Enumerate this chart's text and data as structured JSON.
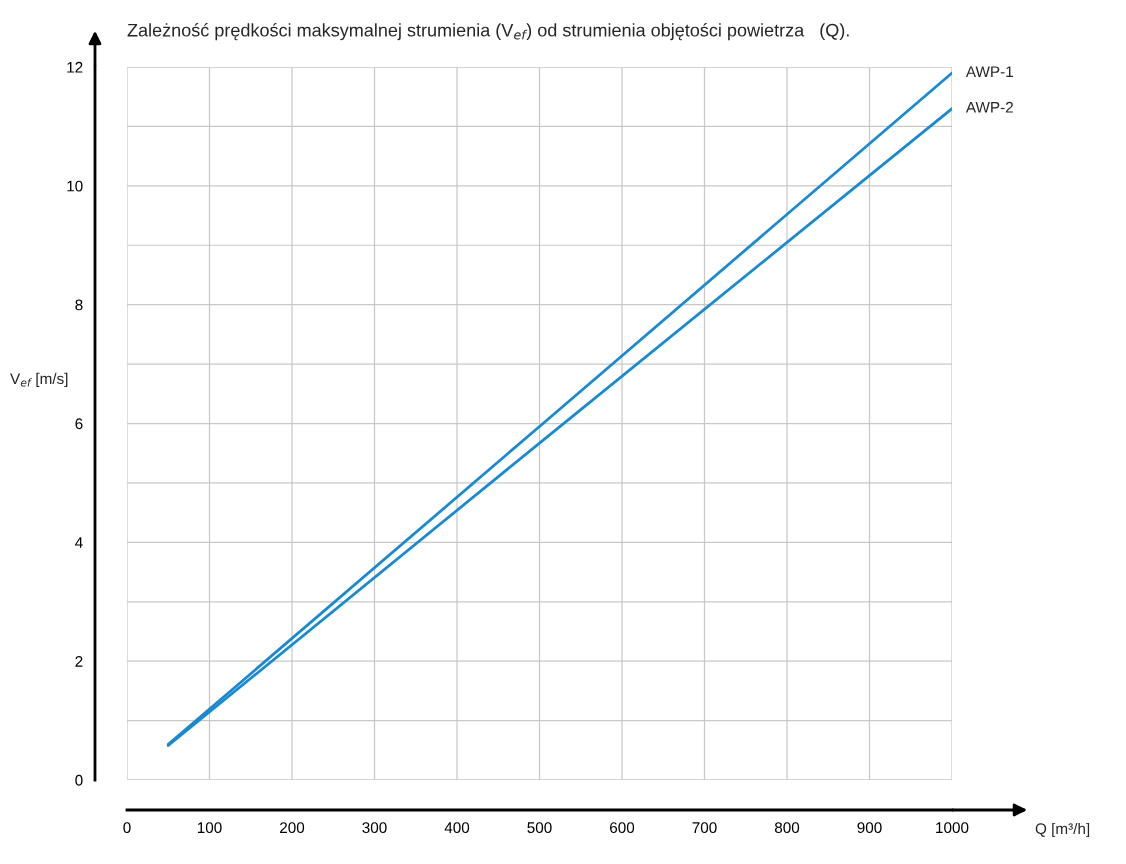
{
  "chart_data": {
    "type": "line",
    "title": "Zależność prędkości maksymalnej strumienia (V$_{ef}$) od strumienia objętości powietrza   (Q).",
    "xlabel": "Q [m³/h]",
    "ylabel": "V$_{ef}$ [m/s]",
    "series": [
      {
        "name": "AWP-1",
        "color": "#1a8ad0",
        "x": [
          50,
          500,
          1000
        ],
        "values": [
          0.6,
          5.95,
          11.9
        ]
      },
      {
        "name": "AWP-2",
        "color": "#1a8ad0",
        "x": [
          50,
          500,
          1000
        ],
        "values": [
          0.58,
          5.67,
          11.3
        ]
      }
    ],
    "xlim": [
      0,
      1000
    ],
    "ylim": [
      0,
      12
    ],
    "xticks": [
      0,
      100,
      200,
      300,
      400,
      500,
      600,
      700,
      800,
      900,
      1000
    ],
    "yticks": [
      0,
      {
        "value": 1,
        "label": null
      },
      2,
      {
        "value": 3,
        "label": null
      },
      4,
      {
        "value": 5,
        "label": null
      },
      6,
      {
        "value": 7,
        "label": null
      },
      8,
      {
        "value": 9,
        "label": null
      },
      10,
      {
        "value": 11,
        "label": null
      },
      12
    ],
    "grid": true,
    "legend": false,
    "marker": "none",
    "line_style": "solid"
  }
}
